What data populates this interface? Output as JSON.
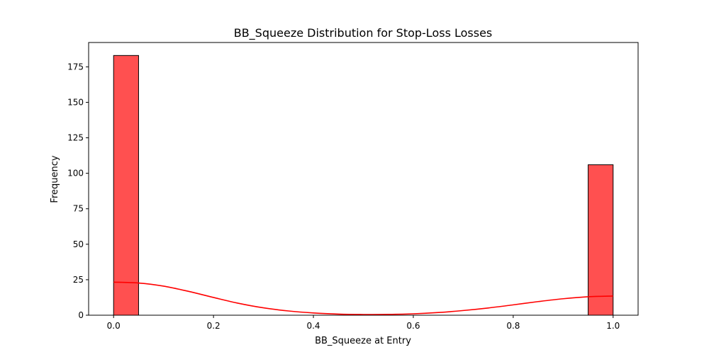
{
  "chart_data": {
    "type": "bar",
    "title": "BB_Squeeze Distribution for Stop-Loss Losses",
    "xlabel": "BB_Squeeze at Entry",
    "ylabel": "Frequency",
    "xlim": [
      -0.05,
      1.05
    ],
    "ylim": [
      0,
      192.15
    ],
    "x_ticks": [
      0.0,
      0.2,
      0.4,
      0.6,
      0.8,
      1.0
    ],
    "x_tick_labels": [
      "0.0",
      "0.2",
      "0.4",
      "0.6",
      "0.8",
      "1.0"
    ],
    "y_ticks": [
      0,
      25,
      50,
      75,
      100,
      125,
      150,
      175
    ],
    "y_tick_labels": [
      "0",
      "25",
      "50",
      "75",
      "100",
      "125",
      "150",
      "175"
    ],
    "bin_width": 0.05,
    "bins": [
      {
        "x_start": 0.0,
        "x_end": 0.05,
        "count": 183
      },
      {
        "x_start": 0.95,
        "x_end": 1.0,
        "count": 106
      }
    ],
    "kde": {
      "x": [
        0.0,
        0.05,
        0.1,
        0.15,
        0.2,
        0.25,
        0.3,
        0.35,
        0.4,
        0.45,
        0.5,
        0.55,
        0.6,
        0.65,
        0.7,
        0.75,
        0.8,
        0.85,
        0.9,
        0.95,
        1.0
      ],
      "y": [
        23.3,
        22.7,
        20.5,
        16.8,
        12.5,
        8.4,
        5.2,
        3.0,
        1.6,
        0.8,
        0.5,
        0.6,
        1.0,
        1.9,
        3.3,
        5.1,
        7.3,
        9.6,
        11.6,
        13.0,
        13.5
      ]
    },
    "grid": false,
    "colors": {
      "bar_fill": "#ff5050",
      "bar_edge": "#000000",
      "kde_line": "#ff0000",
      "axes": "#000000"
    }
  }
}
